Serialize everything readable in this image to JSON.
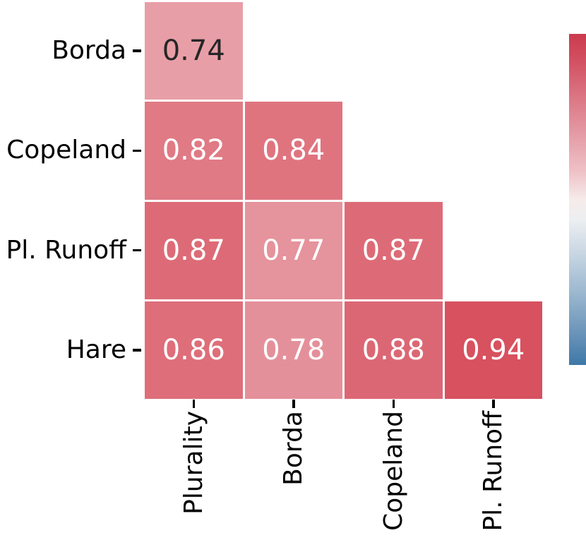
{
  "figure": {
    "background": "#ffffff",
    "text_color": "#000000"
  },
  "chart_data": {
    "type": "heatmap",
    "title": "",
    "subtitle": "",
    "layout": "lower-triangular correlation matrix, colorbar on right, no colorbar tick labels",
    "x_categories": [
      "Plurality",
      "Borda",
      "Copeland",
      "Pl. Runoff"
    ],
    "y_categories": [
      "Borda",
      "Copeland",
      "Pl. Runoff",
      "Hare"
    ],
    "cells": [
      {
        "row": 0,
        "col": 0,
        "row_label": "Borda",
        "col_label": "Plurality",
        "value": "0.74",
        "color": "#e89ea7",
        "text_color": "#262626"
      },
      {
        "row": 1,
        "col": 0,
        "row_label": "Copeland",
        "col_label": "Plurality",
        "value": "0.82",
        "color": "#e07a85",
        "text_color": "#ffffff"
      },
      {
        "row": 1,
        "col": 1,
        "row_label": "Copeland",
        "col_label": "Borda",
        "value": "0.84",
        "color": "#df747f",
        "text_color": "#ffffff"
      },
      {
        "row": 2,
        "col": 0,
        "row_label": "Pl. Runoff",
        "col_label": "Plurality",
        "value": "0.87",
        "color": "#dd6b77",
        "text_color": "#ffffff"
      },
      {
        "row": 2,
        "col": 1,
        "row_label": "Pl. Runoff",
        "col_label": "Borda",
        "value": "0.77",
        "color": "#e5939c",
        "text_color": "#ffffff"
      },
      {
        "row": 2,
        "col": 2,
        "row_label": "Pl. Runoff",
        "col_label": "Copeland",
        "value": "0.87",
        "color": "#dd6b77",
        "text_color": "#ffffff"
      },
      {
        "row": 3,
        "col": 0,
        "row_label": "Hare",
        "col_label": "Plurality",
        "value": "0.86",
        "color": "#de6e7a",
        "text_color": "#ffffff"
      },
      {
        "row": 3,
        "col": 1,
        "row_label": "Hare",
        "col_label": "Borda",
        "value": "0.78",
        "color": "#e4909a",
        "text_color": "#ffffff"
      },
      {
        "row": 3,
        "col": 2,
        "row_label": "Hare",
        "col_label": "Copeland",
        "value": "0.88",
        "color": "#dc6774",
        "text_color": "#ffffff"
      },
      {
        "row": 3,
        "col": 3,
        "row_label": "Hare",
        "col_label": "Pl. Runoff",
        "value": "0.94",
        "color": "#d7515f",
        "text_color": "#ffffff"
      }
    ],
    "grid_line_color": "#ffffff",
    "colorbar": {
      "orientation": "vertical",
      "labels": [],
      "gradient": [
        {
          "pos": 0,
          "color": "#cc3a4d"
        },
        {
          "pos": 8,
          "color": "#d25061"
        },
        {
          "pos": 18,
          "color": "#da7280"
        },
        {
          "pos": 30,
          "color": "#e49aa4"
        },
        {
          "pos": 42,
          "color": "#efc3c8"
        },
        {
          "pos": 50,
          "color": "#f6ebea"
        },
        {
          "pos": 56,
          "color": "#edeff1"
        },
        {
          "pos": 66,
          "color": "#c9d7e3"
        },
        {
          "pos": 78,
          "color": "#9cb8d0"
        },
        {
          "pos": 90,
          "color": "#6c95ba"
        },
        {
          "pos": 100,
          "color": "#3e78a8"
        }
      ]
    }
  }
}
